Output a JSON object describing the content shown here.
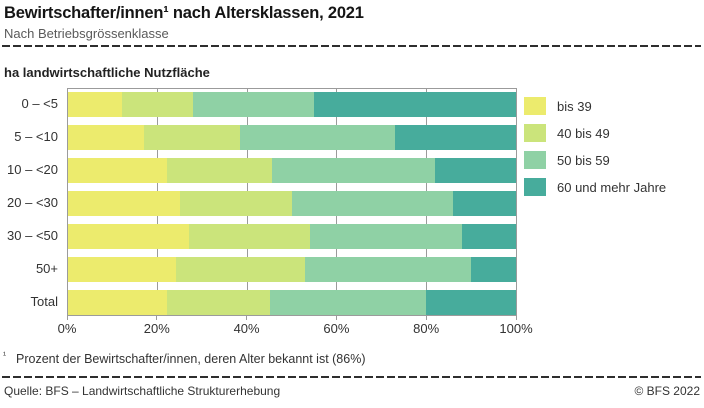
{
  "header": {
    "title": "Bewirtschafter/innen¹ nach Altersklassen, 2021",
    "subtitle": "Nach Betriebsgrössenklasse"
  },
  "chart_data": {
    "type": "bar",
    "orientation": "horizontal",
    "stacked": true,
    "unit": "percent",
    "axis_title": "ha landwirtschaftliche Nutzfläche",
    "categories": [
      "0 – <5",
      "5 – <10",
      "10 – <20",
      "20 – <30",
      "30 – <50",
      "50+",
      "Total"
    ],
    "series": [
      {
        "name": "bis 39",
        "color": "#ECEB6D",
        "values": [
          12,
          17,
          22,
          25,
          27,
          24,
          22
        ]
      },
      {
        "name": "40 bis 49",
        "color": "#CBE47B",
        "values": [
          16,
          21.5,
          23.5,
          25,
          27,
          29,
          23
        ]
      },
      {
        "name": "50 bis 59",
        "color": "#8FD1A5",
        "values": [
          27,
          34.5,
          36.5,
          36,
          34,
          37,
          35
        ]
      },
      {
        "name": "60 und mehr Jahre",
        "color": "#47AC9C",
        "values": [
          45,
          27,
          18,
          14,
          12,
          10,
          20
        ]
      }
    ],
    "xlim": [
      0,
      100
    ],
    "x_ticks": [
      {
        "label": "0%",
        "value": 0
      },
      {
        "label": "20%",
        "value": 20
      },
      {
        "label": "40%",
        "value": 40
      },
      {
        "label": "60%",
        "value": 60
      },
      {
        "label": "80%",
        "value": 80
      },
      {
        "label": "100%",
        "value": 100
      }
    ],
    "gridlines": [
      20,
      40,
      60,
      80
    ],
    "legend_position": "right"
  },
  "footnote": {
    "marker": "¹",
    "text": "Prozent der Bewirtschafter/innen, deren Alter bekannt ist (86%)"
  },
  "footer": {
    "source": "Quelle: BFS – Landwirtschaftliche Strukturerhebung",
    "copyright": "© BFS 2022"
  }
}
